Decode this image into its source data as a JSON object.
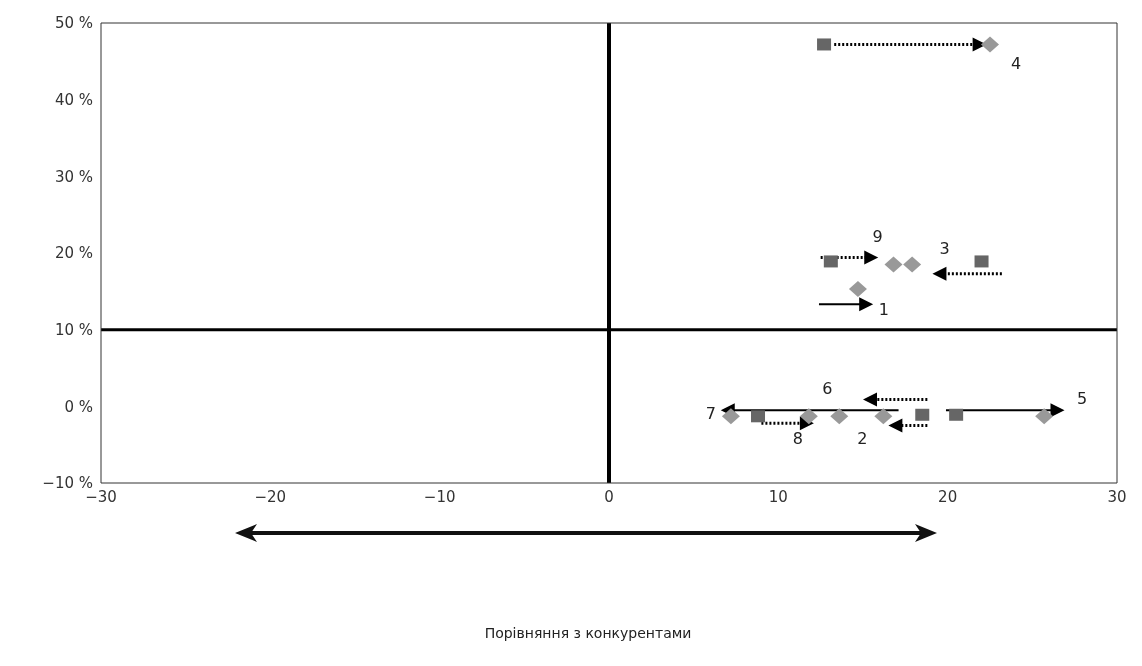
{
  "chart_data": {
    "type": "scatter",
    "xlim": [
      -30,
      30
    ],
    "xticks": [
      {
        "value": -30,
        "label": "−30"
      },
      {
        "value": -20,
        "label": "−20"
      },
      {
        "value": -10,
        "label": "−10"
      },
      0,
      10,
      20,
      30
    ],
    "ylim": [
      -10,
      50
    ],
    "yticks": [
      {
        "value": -10,
        "label": "−10 %"
      },
      {
        "value": 0,
        "label": "0 %"
      },
      {
        "value": 10,
        "label": "10 %"
      },
      {
        "value": 20,
        "label": "20 %"
      },
      {
        "value": 30,
        "label": "30 %"
      },
      {
        "value": 40,
        "label": "40 %"
      },
      {
        "value": 50,
        "label": "50 %"
      }
    ],
    "series": [
      {
        "marker": "square",
        "color": "#666666",
        "x": [
          12.7,
          13.1,
          22,
          8.8,
          18.5,
          20.5
        ],
        "values": [
          47.2,
          18.9,
          18.9,
          -1.3,
          -1.1,
          -1.1
        ]
      },
      {
        "marker": "diamond",
        "color": "#999999",
        "x": [
          22.5,
          16.8,
          17.9,
          14.7,
          7.2,
          11.8,
          13.6,
          16.2,
          25.7
        ],
        "values": [
          47.2,
          18.5,
          18.5,
          15.3,
          -1.3,
          -1.3,
          -1.3,
          -1.3,
          -1.3
        ]
      }
    ],
    "ref_lines": [
      {
        "axis": "x",
        "value": 0,
        "color": "#000000"
      },
      {
        "axis": "y",
        "value": 10,
        "color": "#000000"
      }
    ],
    "annotations": [
      {
        "text": "4",
        "x": 22.5,
        "y": 47.2
      },
      {
        "text": "9",
        "x": 16.8,
        "y": 18.5
      },
      {
        "text": "3",
        "x": 22,
        "y": 18.9
      },
      {
        "text": "1",
        "x": 14.7,
        "y": 15.3
      },
      {
        "text": "6",
        "x": 13.6,
        "y": -1.3
      },
      {
        "text": "5",
        "x": 25.7,
        "y": -1.3
      },
      {
        "text": "7",
        "x": 7.2,
        "y": -1.3
      },
      {
        "text": "8",
        "x": 11.8,
        "y": -1.3
      },
      {
        "text": "2",
        "x": 16.2,
        "y": -1.3
      },
      "Порівняння з конкурентами"
    ]
  }
}
